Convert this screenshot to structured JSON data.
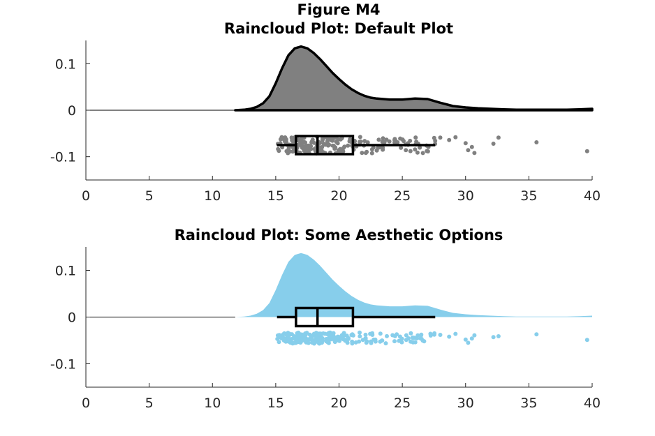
{
  "figure_title": "Figure M4",
  "chart_data": [
    {
      "type": "raincloud",
      "title": "Raincloud Plot: Default Plot",
      "xlabel": "",
      "ylabel": "",
      "xlim": [
        0,
        40
      ],
      "ylim": [
        -0.15,
        0.15
      ],
      "xticks": [
        "0",
        "5",
        "10",
        "15",
        "20",
        "25",
        "30",
        "35",
        "40"
      ],
      "yticks": [
        "-0.1",
        "0",
        "0.1"
      ],
      "grid": false,
      "colors": {
        "cloud": "#808080",
        "cloud_edge": "#000000",
        "rain": "#808080",
        "box": "#000000"
      },
      "density": {
        "x": [
          11.8,
          12.5,
          13.0,
          13.5,
          14.0,
          14.5,
          15.0,
          15.5,
          16.0,
          16.5,
          17.0,
          17.5,
          18.0,
          18.5,
          19.0,
          19.5,
          20.0,
          20.5,
          21.0,
          21.5,
          22.0,
          22.5,
          23.0,
          24.0,
          25.0,
          26.0,
          27.0,
          28.0,
          29.0,
          30.0,
          31.0,
          32.0,
          33.0,
          34.0,
          35.0,
          36.0,
          37.0,
          38.0,
          39.0,
          40.0
        ],
        "y": [
          0.0,
          0.001,
          0.003,
          0.007,
          0.015,
          0.03,
          0.058,
          0.09,
          0.118,
          0.133,
          0.137,
          0.133,
          0.123,
          0.11,
          0.095,
          0.08,
          0.067,
          0.055,
          0.045,
          0.037,
          0.031,
          0.027,
          0.025,
          0.023,
          0.023,
          0.025,
          0.024,
          0.016,
          0.009,
          0.006,
          0.004,
          0.003,
          0.002,
          0.001,
          0.001,
          0.001,
          0.001,
          0.001,
          0.002,
          0.003
        ]
      },
      "box": {
        "whisker_low": 15.1,
        "q1": 16.6,
        "median": 18.3,
        "q3": 21.1,
        "whisker_high": 27.6,
        "y": -0.075
      },
      "rain_y_center": -0.075,
      "rain_y_jitter": 0.018,
      "outliers": [
        {
          "x": 28.0,
          "y": -0.059
        },
        {
          "x": 28.7,
          "y": -0.064
        },
        {
          "x": 29.2,
          "y": -0.058
        },
        {
          "x": 30.0,
          "y": -0.071
        },
        {
          "x": 30.2,
          "y": -0.086
        },
        {
          "x": 30.5,
          "y": -0.079
        },
        {
          "x": 30.7,
          "y": -0.092
        },
        {
          "x": 32.2,
          "y": -0.072
        },
        {
          "x": 32.6,
          "y": -0.059
        },
        {
          "x": 35.6,
          "y": -0.069
        },
        {
          "x": 39.6,
          "y": -0.088
        }
      ]
    },
    {
      "type": "raincloud",
      "title": "Raincloud Plot: Some Aesthetic Options",
      "xlabel": "",
      "ylabel": "",
      "xlim": [
        0,
        40
      ],
      "ylim": [
        -0.15,
        0.15
      ],
      "xticks": [
        "0",
        "5",
        "10",
        "15",
        "20",
        "25",
        "30",
        "35",
        "40"
      ],
      "yticks": [
        "-0.1",
        "0",
        "0.1"
      ],
      "grid": false,
      "colors": {
        "cloud": "#87CEEB",
        "cloud_edge": "none",
        "rain": "#87CEEB",
        "box": "#000000"
      },
      "density": {
        "x": [
          11.8,
          12.5,
          13.0,
          13.5,
          14.0,
          14.5,
          15.0,
          15.5,
          16.0,
          16.5,
          17.0,
          17.5,
          18.0,
          18.5,
          19.0,
          19.5,
          20.0,
          20.5,
          21.0,
          21.5,
          22.0,
          22.5,
          23.0,
          24.0,
          25.0,
          26.0,
          27.0,
          28.0,
          29.0,
          30.0,
          31.0,
          32.0,
          33.0,
          34.0,
          35.0,
          36.0,
          37.0,
          38.0,
          39.0,
          40.0
        ],
        "y": [
          0.0,
          0.001,
          0.003,
          0.007,
          0.015,
          0.03,
          0.058,
          0.09,
          0.118,
          0.133,
          0.137,
          0.133,
          0.123,
          0.11,
          0.095,
          0.08,
          0.067,
          0.055,
          0.045,
          0.037,
          0.031,
          0.027,
          0.025,
          0.023,
          0.023,
          0.025,
          0.024,
          0.016,
          0.009,
          0.006,
          0.004,
          0.003,
          0.002,
          0.001,
          0.001,
          0.001,
          0.001,
          0.001,
          0.002,
          0.003
        ]
      },
      "box": {
        "whisker_low": 15.1,
        "q1": 16.6,
        "median": 18.3,
        "q3": 21.1,
        "whisker_high": 27.6,
        "y": 0.0
      },
      "rain_y_center": -0.045,
      "rain_y_jitter": 0.012,
      "outliers": [
        {
          "x": 28.0,
          "y": -0.038
        },
        {
          "x": 28.7,
          "y": -0.042
        },
        {
          "x": 29.2,
          "y": -0.036
        },
        {
          "x": 30.0,
          "y": -0.048
        },
        {
          "x": 30.2,
          "y": -0.055
        },
        {
          "x": 30.5,
          "y": -0.046
        },
        {
          "x": 30.7,
          "y": -0.039
        },
        {
          "x": 32.2,
          "y": -0.043
        },
        {
          "x": 32.6,
          "y": -0.041
        },
        {
          "x": 35.6,
          "y": -0.037
        },
        {
          "x": 39.6,
          "y": -0.049
        }
      ]
    }
  ]
}
